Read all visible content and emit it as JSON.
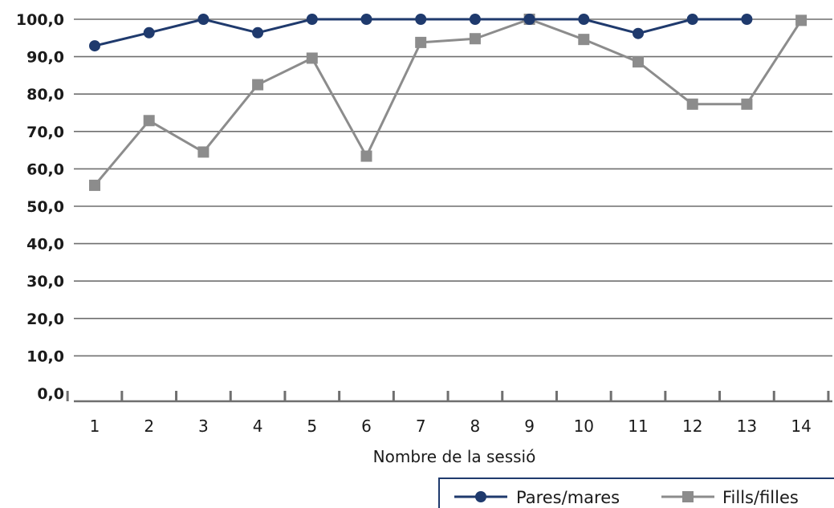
{
  "chart_data": {
    "type": "line",
    "xlabel": "Nombre de la sessió",
    "ylabel": "",
    "ylim": [
      0,
      100
    ],
    "y_ticks": [
      "0,0",
      "10,0",
      "20,0",
      "30,0",
      "40,0",
      "50,0",
      "60,0",
      "70,0",
      "80,0",
      "90,0",
      "100,0"
    ],
    "categories": [
      "1",
      "2",
      "3",
      "4",
      "5",
      "6",
      "7",
      "8",
      "9",
      "10",
      "11",
      "12",
      "13",
      "14"
    ],
    "grid": true,
    "legend_position": "bottom-right",
    "series": [
      {
        "name": "Pares/mares",
        "color": "#1f3a6d",
        "marker": "circle",
        "values": [
          92.9,
          96.4,
          100.0,
          96.4,
          100.0,
          100.0,
          100.0,
          100.0,
          100.0,
          100.0,
          96.2,
          100.0,
          100.0,
          null
        ]
      },
      {
        "name": "Fills/filles",
        "color": "#8c8c8c",
        "marker": "square",
        "values": [
          55.6,
          72.9,
          64.5,
          82.5,
          89.6,
          63.4,
          93.8,
          94.8,
          100.0,
          94.6,
          88.6,
          77.3,
          77.3,
          99.7
        ]
      }
    ]
  }
}
